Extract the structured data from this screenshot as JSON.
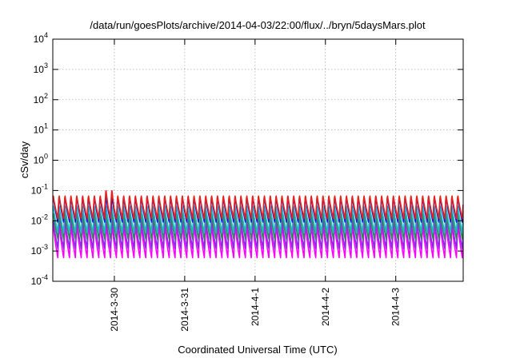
{
  "chart_data": {
    "type": "line",
    "title": "/data/run/goesPlots/archive/2014-04-03/22:00/flux/../bryn/5daysMars.plot",
    "xlabel": "Coordinated Universal Time (UTC)",
    "ylabel": "cSv/day",
    "y_scale": "log",
    "ylim": [
      0.0001,
      10000
    ],
    "y_ticks": [
      {
        "base": "10",
        "exp": "-4",
        "value": 0.0001
      },
      {
        "base": "10",
        "exp": "-3",
        "value": 0.001
      },
      {
        "base": "10",
        "exp": "-2",
        "value": 0.01
      },
      {
        "base": "10",
        "exp": "-1",
        "value": 0.1
      },
      {
        "base": "10",
        "exp": "0",
        "value": 1
      },
      {
        "base": "10",
        "exp": "1",
        "value": 10
      },
      {
        "base": "10",
        "exp": "2",
        "value": 100
      },
      {
        "base": "10",
        "exp": "3",
        "value": 1000
      },
      {
        "base": "10",
        "exp": "4",
        "value": 10000
      }
    ],
    "x_ticks": [
      "2014-3-30",
      "2014-3-31",
      "2014-4-1",
      "2014-4-2",
      "2014-4-3"
    ],
    "xlim": [
      "2014-03-29 03:00",
      "2014-04-03 23:00"
    ],
    "grid": true,
    "legend": "none",
    "pattern": "periodic sawtooth, approx. 12 cycles per day",
    "series": [
      {
        "color": "#e8201e",
        "peak": 0.075,
        "trough": 0.012,
        "spike_peak": 0.15
      },
      {
        "color": "#1a1acc",
        "peak": 0.07,
        "trough": 0.009
      },
      {
        "color": "#1fb6c8",
        "peak": 0.035,
        "trough": 0.004
      },
      {
        "color": "#2e8b57",
        "peak": 0.02,
        "trough": 0.0025
      },
      {
        "color": "#8a2be2",
        "peak": 0.012,
        "trough": 0.0012
      },
      {
        "color": "#ff00ff",
        "peak": 0.008,
        "trough": 0.0006
      }
    ]
  }
}
